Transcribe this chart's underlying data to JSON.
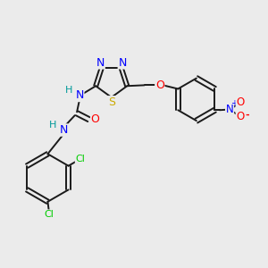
{
  "background_color": "#ebebeb",
  "bond_color": "#1a1a1a",
  "atom_colors": {
    "N": "#0000ff",
    "S": "#ccaa00",
    "O": "#ff0000",
    "Cl": "#00cc00",
    "H": "#009999",
    "C": "#1a1a1a"
  },
  "figsize": [
    3.0,
    3.0
  ],
  "dpi": 100
}
